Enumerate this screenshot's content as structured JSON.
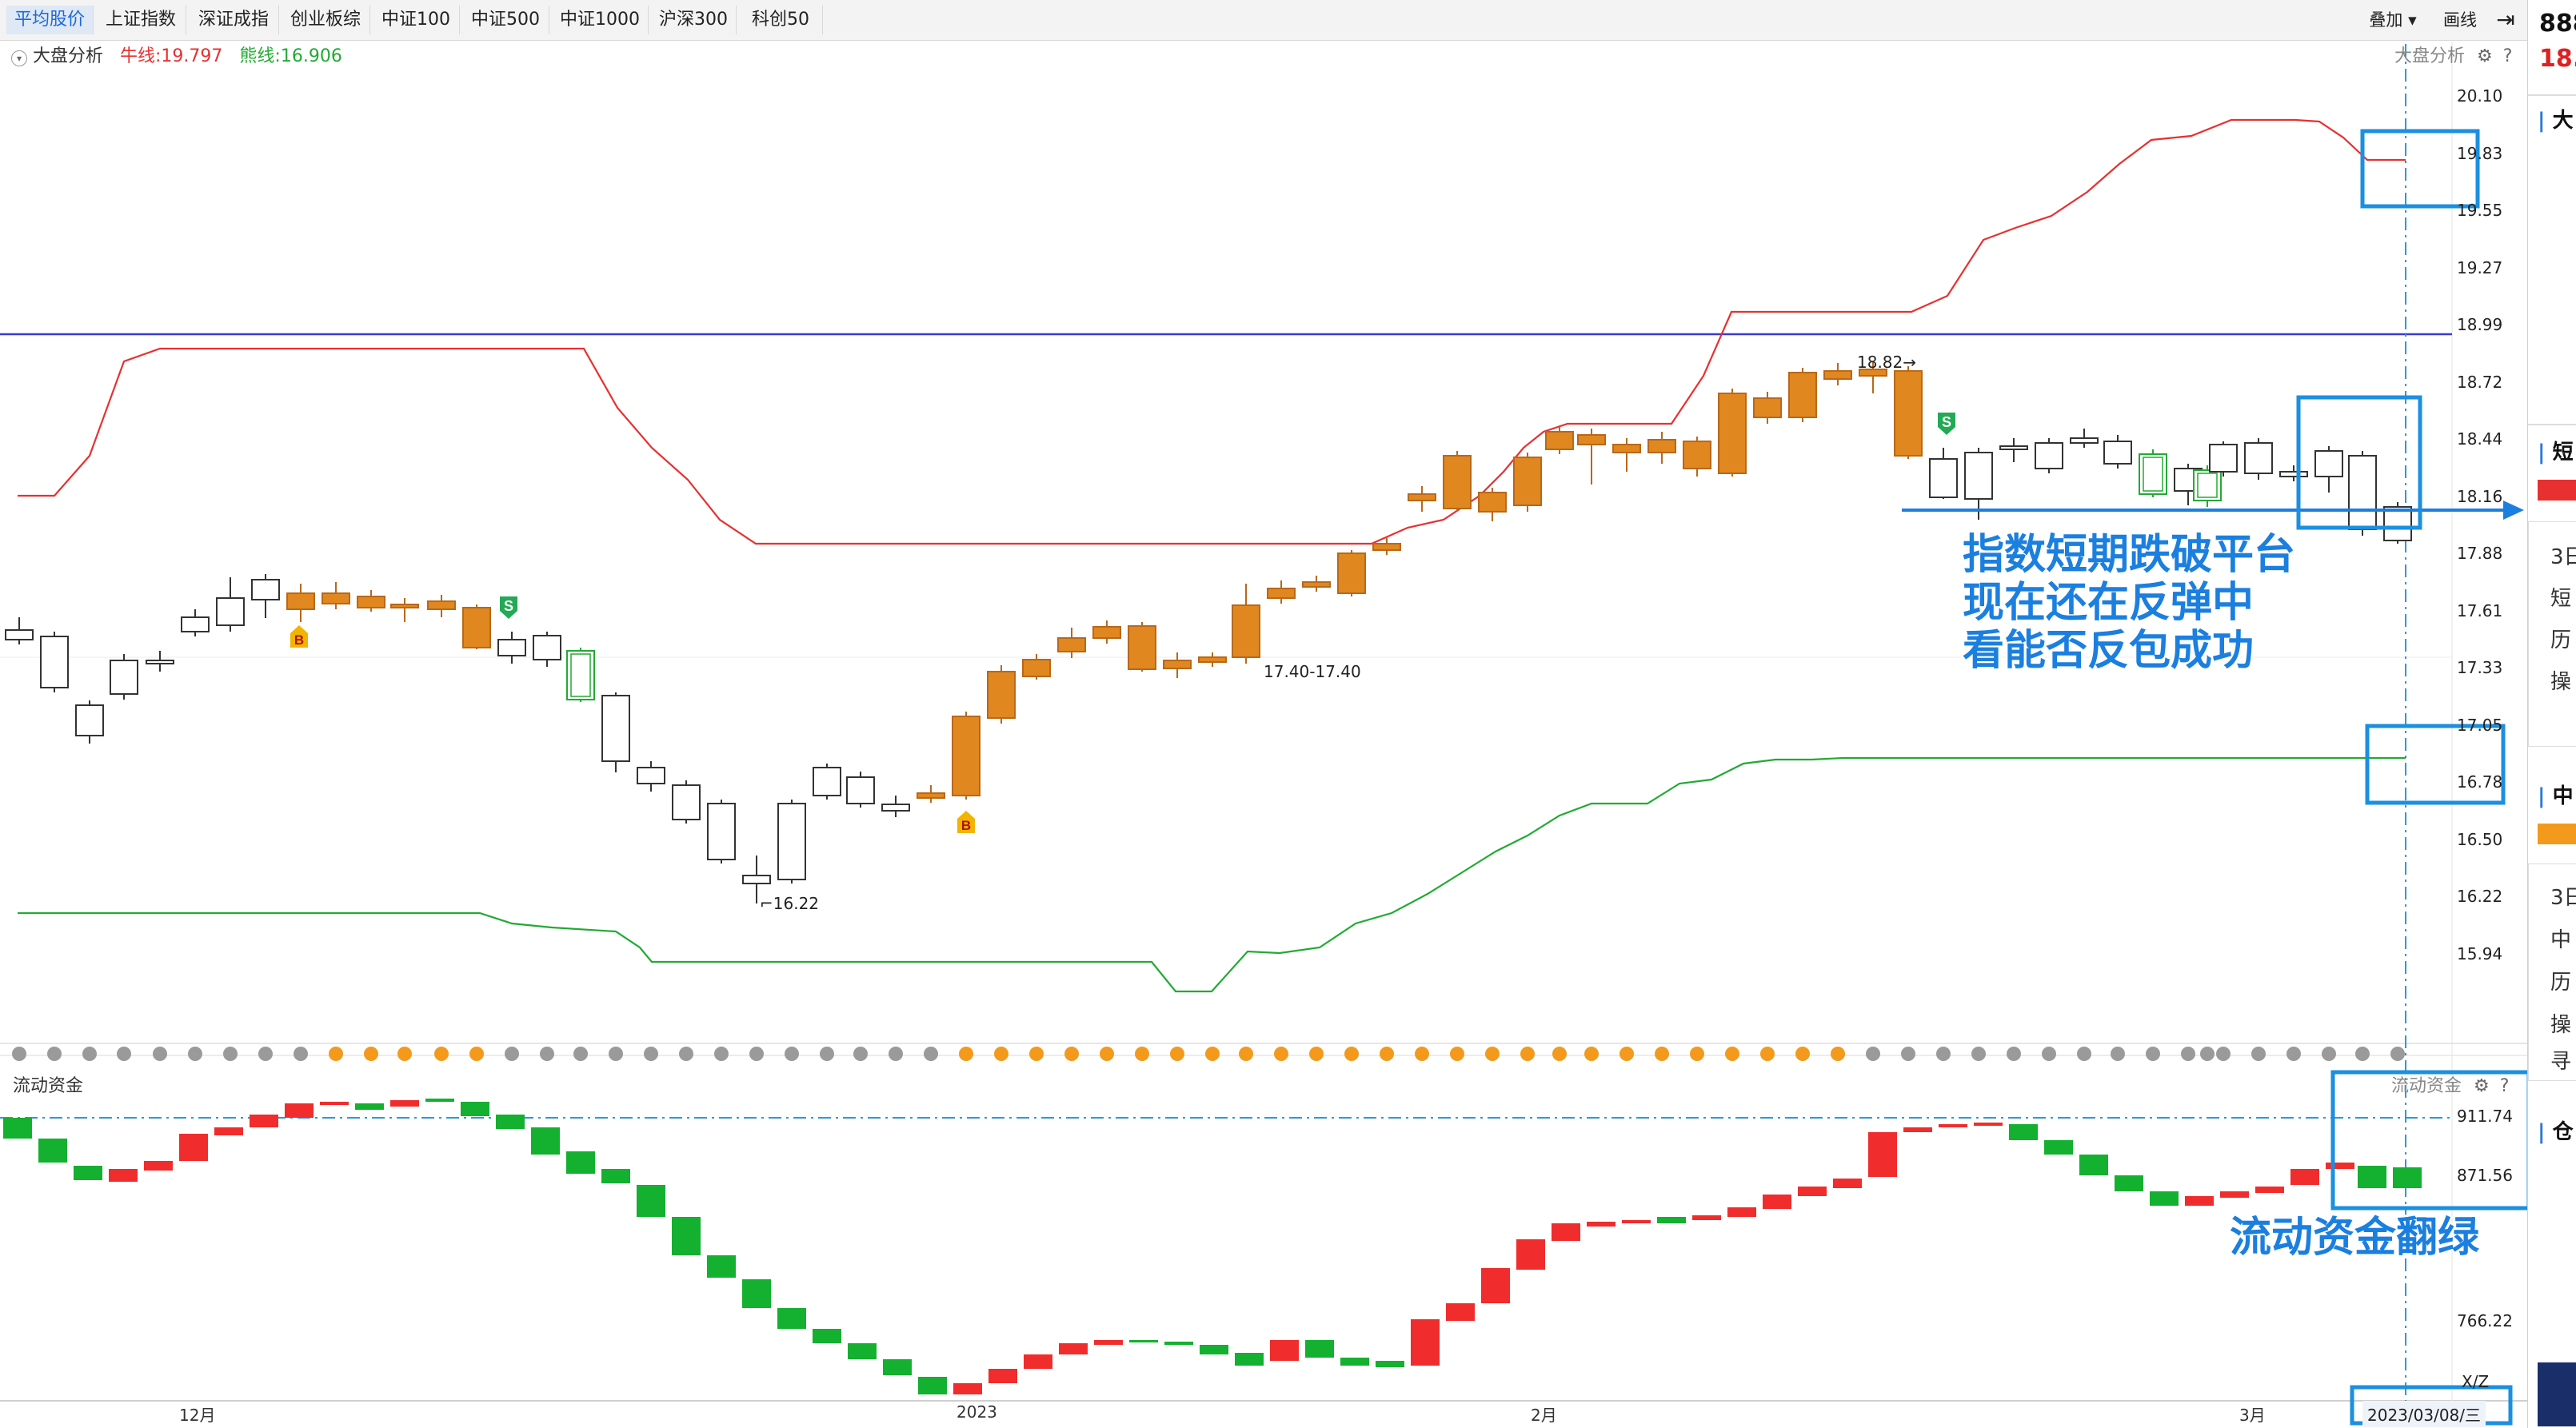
{
  "toolbar": {
    "tabs": [
      "平均股价",
      "上证指数",
      "深证成指",
      "创业板综",
      "中证100",
      "中证500",
      "中证1000",
      "沪深300",
      "科创50"
    ],
    "active_tab": "平均股价",
    "overlay_btn": "叠加 ▾",
    "draw_btn": "画线"
  },
  "main_chart": {
    "indicator_name": "大盘分析",
    "bull_line": "牛线:19.797",
    "bear_line": "熊线:16.906",
    "right_indicator": "大盘分析",
    "y_ticks": [
      "20.10",
      "19.83",
      "19.55",
      "19.27",
      "18.99",
      "18.72",
      "18.44",
      "18.16",
      "17.88",
      "17.61",
      "17.33",
      "17.05",
      "16.78",
      "16.50",
      "16.22",
      "15.94"
    ],
    "high_label": "18.82",
    "low_label": "16.22",
    "mid_label": "17.40-17.40",
    "buy_marker": "B",
    "sell_marker": "S"
  },
  "sub_chart": {
    "title": "流动资金",
    "right_title": "流动资金",
    "y_ticks": [
      "911.74",
      "871.56",
      "766.22"
    ],
    "unit": "X/Z"
  },
  "x_axis": {
    "labels": [
      "12月",
      "2023",
      "2月",
      "3月"
    ],
    "current_date": "2023/03/08/三"
  },
  "annotations": {
    "platform": [
      "指数短期跌破平台",
      "现在还在反弹中",
      "看能否反包成功"
    ],
    "funds": "流动资金翻绿"
  },
  "right_panel": {
    "code": "888",
    "price": "18.",
    "items": [
      "大",
      "短",
      "3日",
      "短",
      "历",
      "操",
      "中",
      "3日",
      "中",
      "历",
      "操",
      "寻",
      "仓"
    ]
  },
  "colors": {
    "up": "#e0871f",
    "down_outline": "#333333",
    "bull_line": "#e83030",
    "bear_line": "#22aa33",
    "flow_up": "#f02c2c",
    "flow_down": "#14b030",
    "annotation": "#1b7fe0",
    "hline": "#3a3ad0"
  }
}
